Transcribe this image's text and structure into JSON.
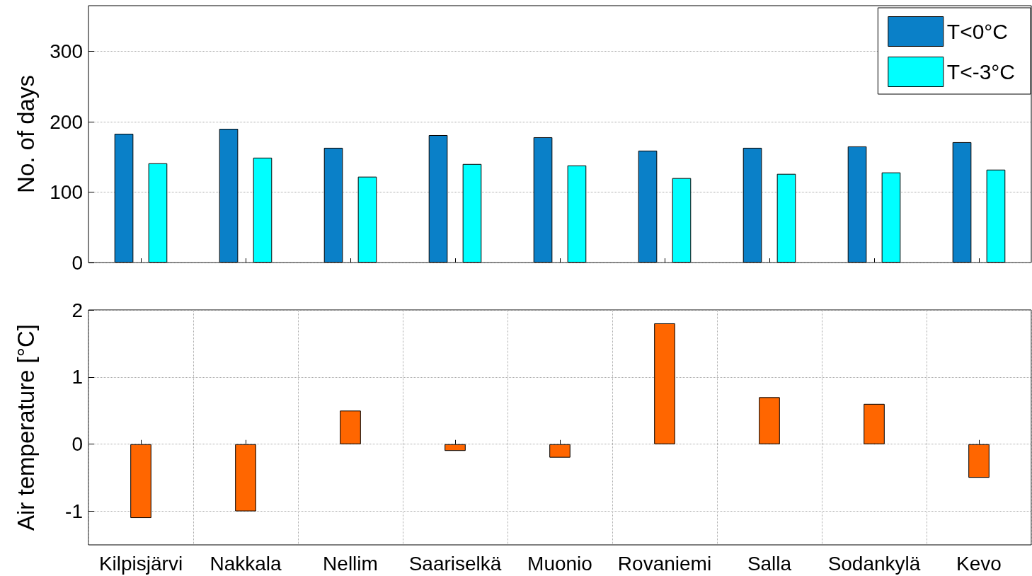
{
  "chart_data": [
    {
      "type": "bar",
      "ylabel": "No. of days",
      "categories": [
        null,
        null,
        null,
        null,
        null,
        null,
        null,
        null,
        null
      ],
      "series": [
        {
          "name": "T<0°C",
          "color": "#0a80c8",
          "values": [
            183,
            190,
            163,
            181,
            178,
            159,
            163,
            165,
            171
          ]
        },
        {
          "name": "T<-3°C",
          "color": "#00ffff",
          "values": [
            141,
            149,
            122,
            140,
            138,
            120,
            126,
            128,
            132
          ]
        }
      ],
      "ylim": [
        0,
        365
      ],
      "yticks": [
        0,
        100,
        200,
        300
      ],
      "grid": "y",
      "legend": "top right",
      "tick_labels": "y"
    },
    {
      "type": "bar",
      "ylabel": "Air temperature [°C]",
      "categories": [
        "Kilpisjärvi",
        "Nakkala",
        "Nellim",
        "Saariselkä",
        "Muonio",
        "Rovaniemi",
        "Salla",
        "Sodankylä",
        "Kevo"
      ],
      "series": [
        {
          "color": "#ff6600",
          "values": [
            -1.1,
            -1.0,
            0.5,
            -0.1,
            -0.2,
            1.8,
            0.7,
            0.6,
            -0.5
          ]
        }
      ],
      "ylim": [
        -1.5,
        2
      ],
      "yticks": [
        -1,
        0,
        1,
        2
      ],
      "grid": true
    }
  ]
}
